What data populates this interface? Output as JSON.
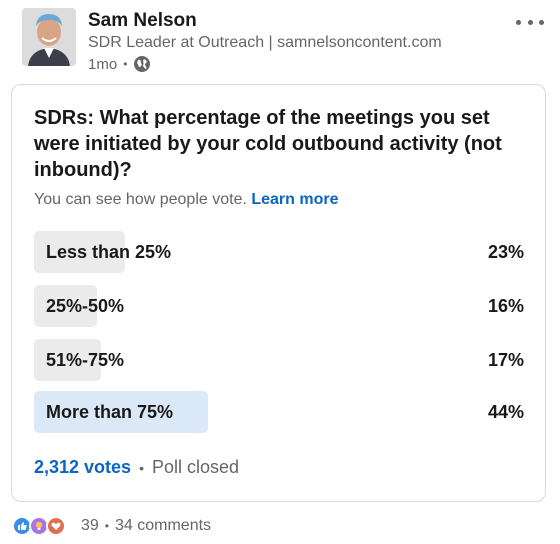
{
  "author": {
    "name": "Sam Nelson",
    "headline": "SDR Leader at Outreach | samnelsoncontent.com",
    "time": "1mo",
    "visibility_icon": "globe-icon"
  },
  "poll": {
    "question": "SDRs: What percentage of the meetings you set were initiated by your cold outbound activity (not inbound)?",
    "visibility_text": "You can see how people vote.",
    "learn_more": "Learn more",
    "options": [
      {
        "label": "Less than 25%",
        "percent_text": "23%",
        "percent": 23,
        "selected": false
      },
      {
        "label": "25%-50%",
        "percent_text": "16%",
        "percent": 16,
        "selected": false
      },
      {
        "label": "51%-75%",
        "percent_text": "17%",
        "percent": 17,
        "selected": false
      },
      {
        "label": "More than 75%",
        "percent_text": "44%",
        "percent": 44,
        "selected": true
      }
    ],
    "votes": "2,312 votes",
    "status": "Poll closed"
  },
  "social": {
    "reaction_icons": [
      "like-icon",
      "insightful-icon",
      "love-icon"
    ],
    "reaction_count": "39",
    "comments": "34 comments"
  },
  "colors": {
    "accent": "#0a66c2",
    "bar_default": "#ebebeb",
    "bar_selected": "#dbe8f7"
  }
}
